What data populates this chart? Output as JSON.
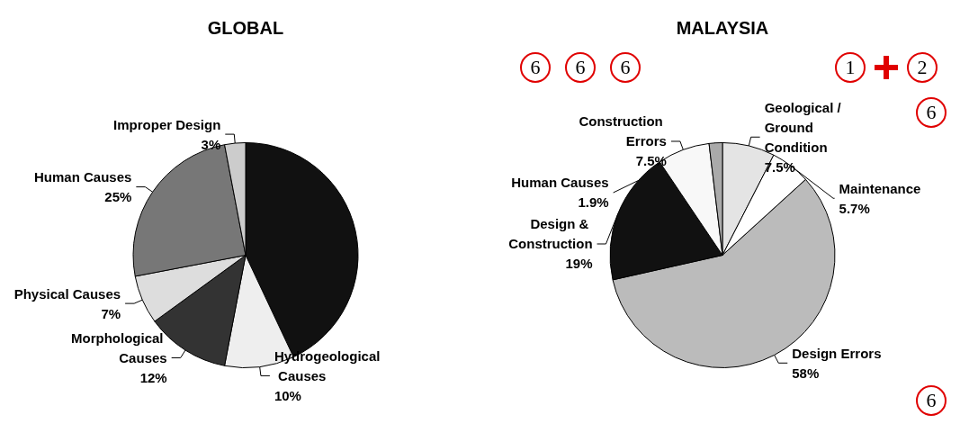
{
  "chart_data": [
    {
      "type": "pie",
      "title": "GLOBAL",
      "categories": [
        null,
        "Hydrogeological Causes",
        "Morphological Causes",
        "Physical Causes",
        "Human Causes",
        "Improper Design"
      ],
      "values": [
        43,
        10,
        12,
        7,
        25,
        3
      ],
      "colors": [
        "#111111",
        "#eeeeee",
        "#333333",
        "#dddddd",
        "#777777",
        "#cccccc"
      ],
      "value_labels": [
        null,
        "10%",
        "12%",
        "7%",
        "25%",
        "3%"
      ]
    },
    {
      "type": "pie",
      "title": "MALAYSIA",
      "categories": [
        "Geological / Ground Condition",
        "Maintenance",
        "Design Errors",
        "Design & Construction",
        "Construction Errors",
        "Human Causes"
      ],
      "values": [
        7.5,
        5.7,
        58,
        19,
        7.5,
        1.9
      ],
      "colors": [
        "#e4e4e4",
        "#ffffff",
        "#bbbbbb",
        "#111111",
        "#f8f8f8",
        "#aaaaaa"
      ],
      "value_labels": [
        "7.5%",
        "5.7%",
        "58%",
        "19%",
        "7.5%",
        "1.9%"
      ],
      "annotations": [
        "6",
        "1",
        "2",
        "6",
        "6",
        "6",
        "6"
      ]
    }
  ]
}
